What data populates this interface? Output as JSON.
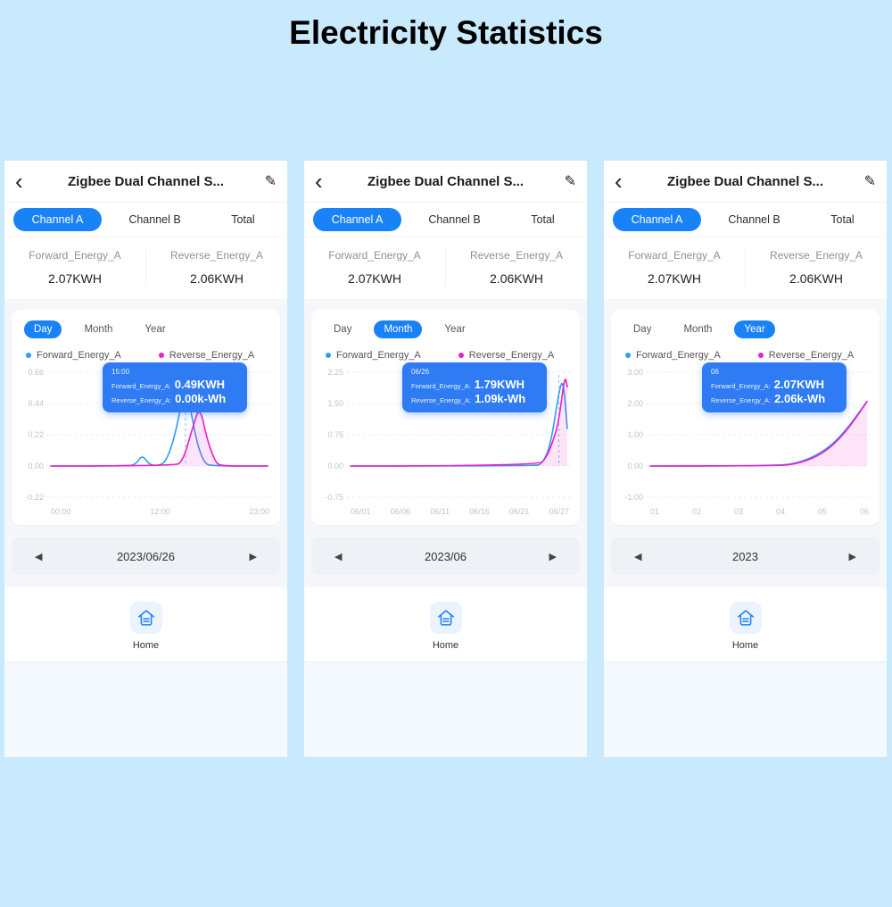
{
  "page": {
    "title": "Electricity Statistics",
    "background_color": "#c9e9fc",
    "accent_color": "#1a82f7",
    "tooltip_color": "#2e7bf4"
  },
  "phones": [
    {
      "header": {
        "title": "Zigbee Dual Channel S..."
      },
      "channel_tabs": [
        {
          "label": "Channel A",
          "active": true
        },
        {
          "label": "Channel B",
          "active": false
        },
        {
          "label": "Total",
          "active": false
        }
      ],
      "stats": [
        {
          "label": "Forward_Energy_A",
          "value": "2.07KWH"
        },
        {
          "label": "Reverse_Energy_A",
          "value": "2.06KWH"
        }
      ],
      "period_tabs": [
        {
          "label": "Day",
          "active": true
        },
        {
          "label": "Month",
          "active": false
        },
        {
          "label": "Year",
          "active": false
        }
      ],
      "legend": [
        {
          "label": "Forward_Energy_A",
          "color": "#2e9df6"
        },
        {
          "label": "Reverse_Energy_A",
          "color": "#ec1fc8"
        }
      ],
      "tooltip": {
        "title": "15:00",
        "rows": [
          {
            "label": "Forward_Energy_A:",
            "value": "0.49KWH"
          },
          {
            "label": "Reverse_Energy_A:",
            "value": "0.00k-Wh"
          }
        ]
      },
      "chart_data": {
        "type": "line",
        "x_range": [
          0,
          23
        ],
        "y_range": [
          -0.22,
          0.66
        ],
        "pointer_x": 14.3,
        "y_ticks": [
          {
            "label": "0.66",
            "value": 0.66
          },
          {
            "label": "0.44",
            "value": 0.44
          },
          {
            "label": "0.22",
            "value": 0.22
          },
          {
            "label": "0.00",
            "value": 0
          },
          {
            "label": "-0.22",
            "value": -0.22
          }
        ],
        "x_ticks": [
          {
            "label": "00:00"
          },
          {
            "label": "12:00"
          },
          {
            "label": "23:00"
          }
        ],
        "series": [
          {
            "name": "Forward_Energy_A",
            "color": "#2e9df6",
            "fill": false,
            "points": [
              [
                0,
                0
              ],
              [
                8,
                0
              ],
              [
                9,
                0.01
              ],
              [
                9.7,
                0.08
              ],
              [
                10.4,
                0.01
              ],
              [
                11.5,
                0
              ],
              [
                12.3,
                0.04
              ],
              [
                13.2,
                0.22
              ],
              [
                14,
                0.49
              ],
              [
                14.7,
                0.45
              ],
              [
                15.5,
                0.16
              ],
              [
                16.3,
                0.02
              ],
              [
                17,
                0
              ],
              [
                23,
                0
              ]
            ]
          },
          {
            "name": "Reverse_Energy_A",
            "color": "#ec1fc8",
            "fill": true,
            "points": [
              [
                0,
                0
              ],
              [
                13,
                0
              ],
              [
                14,
                0.03
              ],
              [
                15,
                0.26
              ],
              [
                15.8,
                0.43
              ],
              [
                16.6,
                0.18
              ],
              [
                17.5,
                0.02
              ],
              [
                18.2,
                0
              ],
              [
                23,
                0
              ]
            ]
          }
        ]
      },
      "date_nav": {
        "value": "2023/06/26"
      },
      "home": {
        "label": "Home"
      }
    },
    {
      "header": {
        "title": "Zigbee Dual Channel S..."
      },
      "channel_tabs": [
        {
          "label": "Channel A",
          "active": true
        },
        {
          "label": "Channel B",
          "active": false
        },
        {
          "label": "Total",
          "active": false
        }
      ],
      "stats": [
        {
          "label": "Forward_Energy_A",
          "value": "2.07KWH"
        },
        {
          "label": "Reverse_Energy_A",
          "value": "2.06KWH"
        }
      ],
      "period_tabs": [
        {
          "label": "Day",
          "active": false
        },
        {
          "label": "Month",
          "active": true
        },
        {
          "label": "Year",
          "active": false
        }
      ],
      "legend": [
        {
          "label": "Forward_Energy_A",
          "color": "#2e9df6"
        },
        {
          "label": "Reverse_Energy_A",
          "color": "#ec1fc8"
        }
      ],
      "tooltip": {
        "title": "06/26",
        "rows": [
          {
            "label": "Forward_Energy_A:",
            "value": "1.79KWH"
          },
          {
            "label": "Reverse_Energy_A:",
            "value": "1.09k-Wh"
          }
        ]
      },
      "chart_data": {
        "type": "line",
        "x_range": [
          1,
          27
        ],
        "y_range": [
          -0.75,
          2.25
        ],
        "pointer_x": 26,
        "y_ticks": [
          {
            "label": "2.25",
            "value": 2.25
          },
          {
            "label": "1.50",
            "value": 1.5
          },
          {
            "label": "0.75",
            "value": 0.75
          },
          {
            "label": "0.00",
            "value": 0
          },
          {
            "label": "-0.75",
            "value": -0.75
          }
        ],
        "x_ticks": [
          {
            "label": "06/01"
          },
          {
            "label": "06/06"
          },
          {
            "label": "06/11"
          },
          {
            "label": "06/16"
          },
          {
            "label": "06/21"
          },
          {
            "label": "06/27"
          }
        ],
        "series": [
          {
            "name": "Forward_Energy_A",
            "color": "#2e9df6",
            "fill": false,
            "points": [
              [
                1,
                0
              ],
              [
                23,
                0
              ],
              [
                24,
                0.05
              ],
              [
                25,
                0.5
              ],
              [
                26,
                1.79
              ],
              [
                26.5,
                2.1
              ],
              [
                27,
                0.9
              ]
            ]
          },
          {
            "name": "Reverse_Energy_A",
            "color": "#ec1fc8",
            "fill": true,
            "points": [
              [
                1,
                0
              ],
              [
                23.5,
                0
              ],
              [
                24.5,
                0.2
              ],
              [
                25.3,
                0.6
              ],
              [
                26,
                1.09
              ],
              [
                26.7,
                2.2
              ],
              [
                27,
                1.9
              ]
            ]
          }
        ]
      },
      "date_nav": {
        "value": "2023/06"
      },
      "home": {
        "label": "Home"
      }
    },
    {
      "header": {
        "title": "Zigbee Dual Channel S..."
      },
      "channel_tabs": [
        {
          "label": "Channel A",
          "active": true
        },
        {
          "label": "Channel B",
          "active": false
        },
        {
          "label": "Total",
          "active": false
        }
      ],
      "stats": [
        {
          "label": "Forward_Energy_A",
          "value": "2.07KWH"
        },
        {
          "label": "Reverse_Energy_A",
          "value": "2.06KWH"
        }
      ],
      "period_tabs": [
        {
          "label": "Day",
          "active": false
        },
        {
          "label": "Month",
          "active": false
        },
        {
          "label": "Year",
          "active": true
        }
      ],
      "legend": [
        {
          "label": "Forward_Energy_A",
          "color": "#2e9df6"
        },
        {
          "label": "Reverse_Energy_A",
          "color": "#ec1fc8"
        }
      ],
      "tooltip": {
        "title": "06",
        "rows": [
          {
            "label": "Forward_Energy_A:",
            "value": "2.07KWH"
          },
          {
            "label": "Reverse_Energy_A:",
            "value": "2.06k-Wh"
          }
        ]
      },
      "chart_data": {
        "type": "line",
        "x_range": [
          1,
          6
        ],
        "y_range": [
          -1,
          3
        ],
        "pointer_x": null,
        "y_ticks": [
          {
            "label": "3.00",
            "value": 3
          },
          {
            "label": "2.00",
            "value": 2
          },
          {
            "label": "1.00",
            "value": 1
          },
          {
            "label": "0.00",
            "value": 0
          },
          {
            "label": "-1.00",
            "value": -1
          }
        ],
        "x_ticks": [
          {
            "label": "01"
          },
          {
            "label": "02"
          },
          {
            "label": "03"
          },
          {
            "label": "04"
          },
          {
            "label": "05"
          },
          {
            "label": "06"
          }
        ],
        "series": [
          {
            "name": "Forward_Energy_A",
            "color": "#2e9df6",
            "fill": false,
            "points": [
              [
                1,
                0
              ],
              [
                3.8,
                0
              ],
              [
                4.4,
                0.08
              ],
              [
                5,
                0.45
              ],
              [
                5.5,
                1.1
              ],
              [
                6,
                2.07
              ]
            ]
          },
          {
            "name": "Reverse_Energy_A",
            "color": "#ec1fc8",
            "fill": true,
            "points": [
              [
                1,
                0
              ],
              [
                3.8,
                0
              ],
              [
                4.4,
                0.06
              ],
              [
                5,
                0.4
              ],
              [
                5.5,
                1.05
              ],
              [
                6,
                2.06
              ]
            ]
          }
        ]
      },
      "date_nav": {
        "value": "2023"
      },
      "home": {
        "label": "Home"
      }
    }
  ]
}
